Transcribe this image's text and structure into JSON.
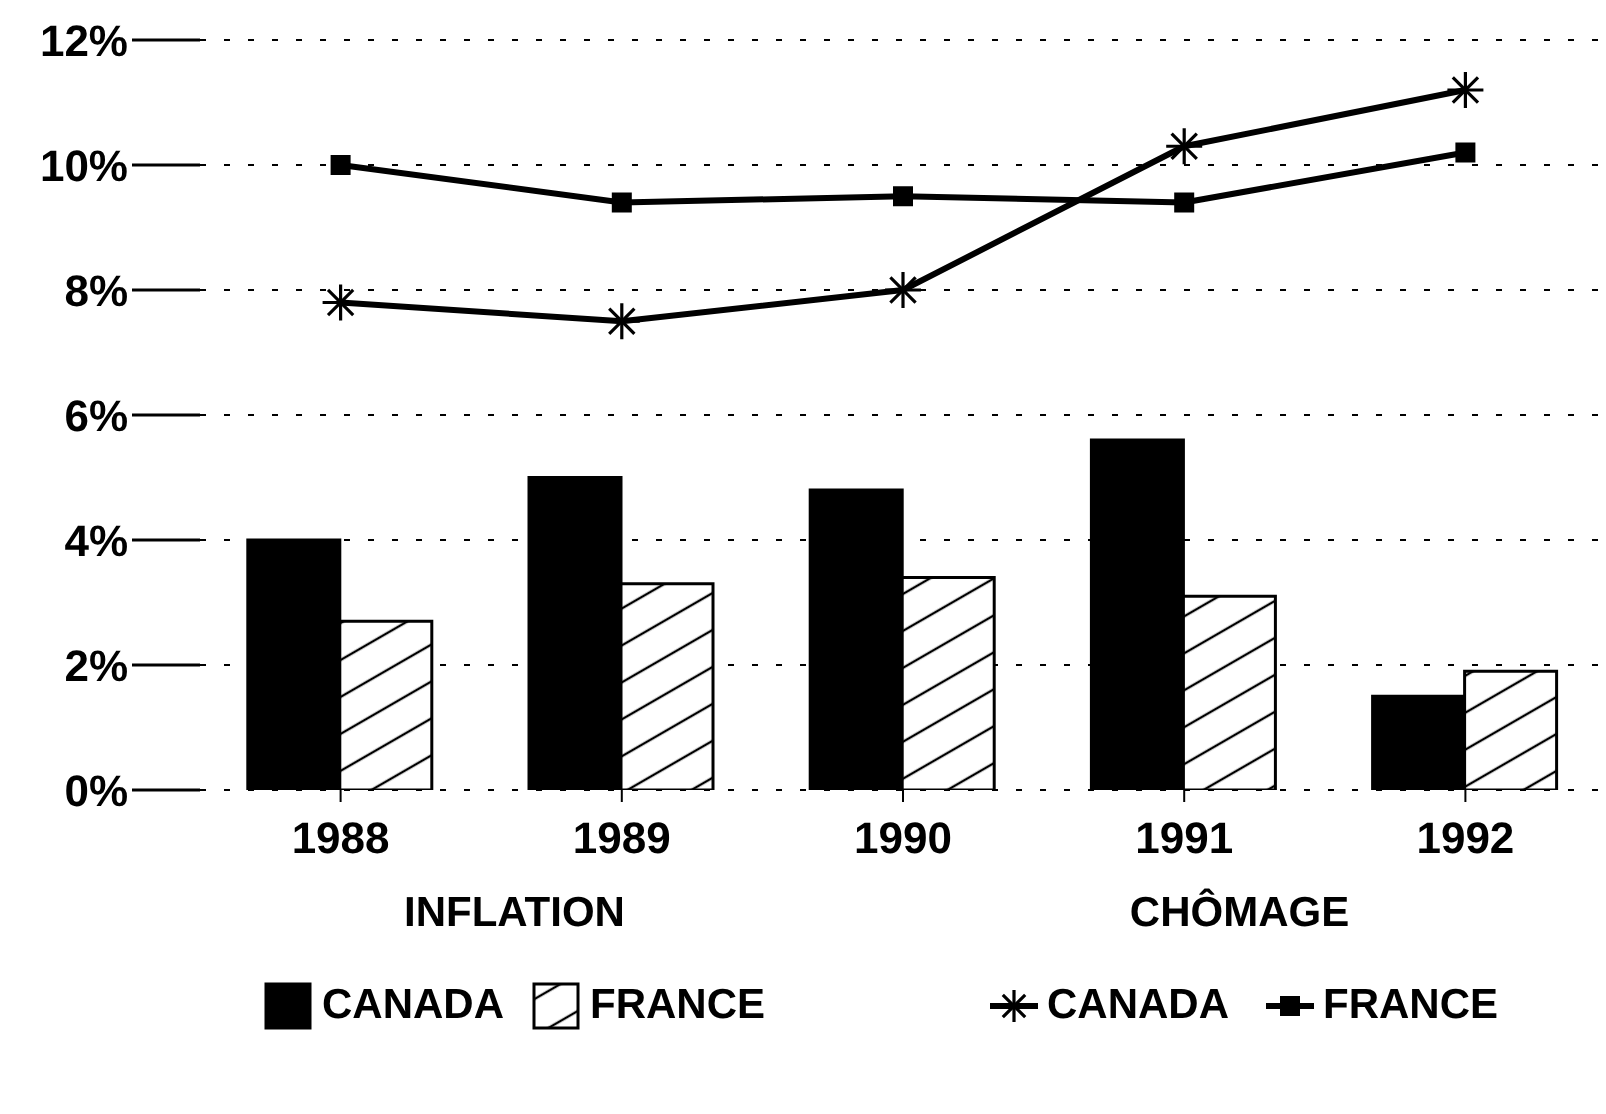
{
  "chart_data": {
    "type": "bar",
    "categories": [
      "1988",
      "1989",
      "1990",
      "1991",
      "1992"
    ],
    "series": [
      {
        "name": "CANADA",
        "color": "#000000",
        "values": [
          4.0,
          5.0,
          4.8,
          5.6,
          1.5
        ]
      },
      {
        "name": "FRANCE",
        "color": "#ffffff",
        "values": [
          2.7,
          3.3,
          3.4,
          3.1,
          1.9
        ]
      },
      {
        "name": "CANADA",
        "type": "line",
        "color": "#000000",
        "marker": "cross",
        "values": [
          7.8,
          7.5,
          8.0,
          10.3,
          11.2
        ]
      },
      {
        "name": "FRANCE",
        "type": "line",
        "color": "#000000",
        "marker": "square",
        "values": [
          10.0,
          9.4,
          9.5,
          9.4,
          10.2
        ]
      }
    ],
    "ylim": [
      0,
      12
    ],
    "yticks": [
      {
        "value": 0,
        "label": "0%"
      },
      {
        "value": 2,
        "label": "2%"
      },
      {
        "value": 4,
        "label": "4%"
      },
      {
        "value": 6,
        "label": "6%"
      },
      {
        "value": 8,
        "label": "8%"
      },
      {
        "value": 10,
        "label": "10%"
      },
      {
        "value": 12,
        "label": "12%"
      }
    ],
    "grid": "y",
    "legend": "bottom",
    "line_style": "solid",
    "annotations": [
      "INFLATION",
      "CHÔMAGE"
    ]
  }
}
